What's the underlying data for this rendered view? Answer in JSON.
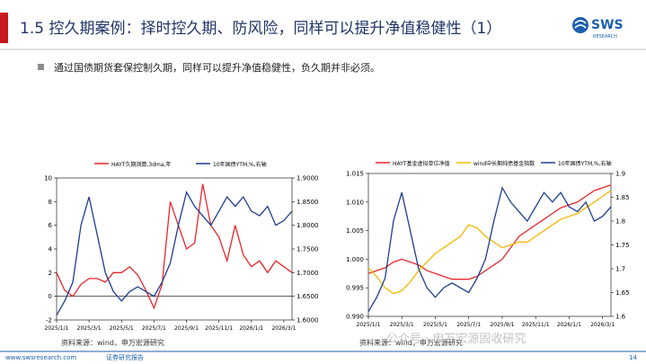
{
  "header": {
    "title": "1.5 控久期案例：择时控久期、防风险，同样可以提升净值稳健性（1）",
    "logo": "SWS",
    "logo_sub": "RESEARCH"
  },
  "bullet": "通过国债期货套保控制久期，同样可以提升净值稳健性，负久期并非必须。",
  "chart_data": [
    {
      "type": "line",
      "categories": [
        "2025/1/1",
        null,
        null,
        null,
        "2025/3/1",
        null,
        null,
        null,
        "2025/5/1",
        null,
        null,
        null,
        "2025/7/1",
        null,
        null,
        null,
        "2025/9/1",
        null,
        null,
        null,
        "2025/11/1",
        null,
        null,
        null,
        "2026/1/1",
        null,
        null,
        null,
        "2026/3/1",
        null
      ],
      "series": [
        {
          "name": "HAYT久期测算,3dma,年",
          "color": "#e8262c",
          "values": [
            2,
            0.5,
            0,
            1,
            1.5,
            1.5,
            1.2,
            2,
            2,
            2.5,
            1.8,
            0.5,
            -1,
            1,
            8,
            6,
            4,
            4.5,
            9.5,
            6,
            5,
            3,
            6,
            3.5,
            2.5,
            3,
            2,
            3,
            2.5,
            2
          ]
        },
        {
          "name": "10年国债YTM,%,右轴",
          "color": "#1f3d8f",
          "axis": "y2",
          "values": [
            1.61,
            1.64,
            1.68,
            1.8,
            1.86,
            1.78,
            1.7,
            1.66,
            1.64,
            1.66,
            1.67,
            1.66,
            1.65,
            1.68,
            1.72,
            1.8,
            1.87,
            1.84,
            1.82,
            1.8,
            1.83,
            1.86,
            1.84,
            1.86,
            1.83,
            1.82,
            1.84,
            1.8,
            1.81,
            1.83
          ]
        }
      ],
      "ylim": [
        -2,
        10
      ],
      "yticks": [
        -2,
        0,
        2,
        4,
        6,
        8,
        10
      ],
      "y2lim": [
        1.6,
        1.9
      ],
      "y2ticks": [
        {
          "value": 1.6,
          "label": "1.6000"
        },
        {
          "value": 1.65,
          "label": "1.6500"
        },
        {
          "value": 1.7,
          "label": "1.7000"
        },
        {
          "value": 1.75,
          "label": "1.7500"
        },
        {
          "value": 1.8,
          "label": "1.8000"
        },
        {
          "value": 1.85,
          "label": "1.8500"
        },
        {
          "value": 1.9,
          "label": "1.9000"
        }
      ]
    },
    {
      "type": "line",
      "categories": [
        "2025/1/1",
        null,
        null,
        null,
        "2025/3/1",
        null,
        null,
        null,
        "2025/5/1",
        null,
        null,
        null,
        "2025/7/1",
        null,
        null,
        null,
        "2025/9/1",
        null,
        null,
        null,
        "2025/11/1",
        null,
        null,
        null,
        "2026/1/1",
        null,
        null,
        null,
        "2026/3/1",
        null
      ],
      "series": [
        {
          "name": "HAYT基金虚拟单位净值",
          "color": "#e8262c",
          "values": [
            0.9975,
            0.998,
            0.9985,
            0.9995,
            1.0,
            0.9995,
            0.999,
            0.998,
            0.9975,
            0.997,
            0.9965,
            0.9965,
            0.9965,
            0.997,
            0.998,
            0.999,
            1.0,
            1.002,
            1.004,
            1.005,
            1.006,
            1.007,
            1.008,
            1.009,
            1.0095,
            1.01,
            1.011,
            1.012,
            1.0125,
            1.013
          ]
        },
        {
          "name": "wind中长期纯债基金指数",
          "color": "#f5b800",
          "values": [
            0.9985,
            0.997,
            0.995,
            0.994,
            0.9945,
            0.996,
            0.998,
            0.9995,
            1.001,
            1.002,
            1.003,
            1.004,
            1.006,
            1.0055,
            1.004,
            1.003,
            1.002,
            1.0025,
            1.003,
            1.003,
            1.004,
            1.005,
            1.006,
            1.007,
            1.0075,
            1.008,
            1.009,
            1.01,
            1.011,
            1.012
          ]
        },
        {
          "name": "10年国债YTM,%,右轴",
          "color": "#1f3d8f",
          "axis": "y2",
          "values": [
            1.61,
            1.64,
            1.68,
            1.8,
            1.86,
            1.78,
            1.7,
            1.66,
            1.64,
            1.66,
            1.67,
            1.66,
            1.65,
            1.68,
            1.72,
            1.8,
            1.87,
            1.84,
            1.82,
            1.8,
            1.83,
            1.86,
            1.84,
            1.86,
            1.83,
            1.82,
            1.84,
            1.8,
            1.81,
            1.83
          ]
        }
      ],
      "ylim": [
        0.99,
        1.015
      ],
      "yticks": [
        {
          "value": 0.99,
          "label": "0.990"
        },
        {
          "value": 0.995,
          "label": "0.995"
        },
        {
          "value": 1.0,
          "label": "1.000"
        },
        {
          "value": 1.005,
          "label": "1.005"
        },
        {
          "value": 1.01,
          "label": "1.010"
        },
        {
          "value": 1.015,
          "label": "1.015"
        }
      ],
      "y2lim": [
        1.6,
        1.9
      ],
      "y2ticks": [
        1.6,
        1.65,
        1.7,
        1.75,
        1.8,
        1.85,
        1.9
      ]
    }
  ],
  "sources": [
    "资料来源：wind，申万宏源研究",
    "资料来源：wind，申万宏源研究"
  ],
  "watermark": "公众号 · 申万宏源固收研究",
  "footer": {
    "site": "www.swsresearch.com",
    "label": "证券研究报告",
    "page": "14"
  }
}
